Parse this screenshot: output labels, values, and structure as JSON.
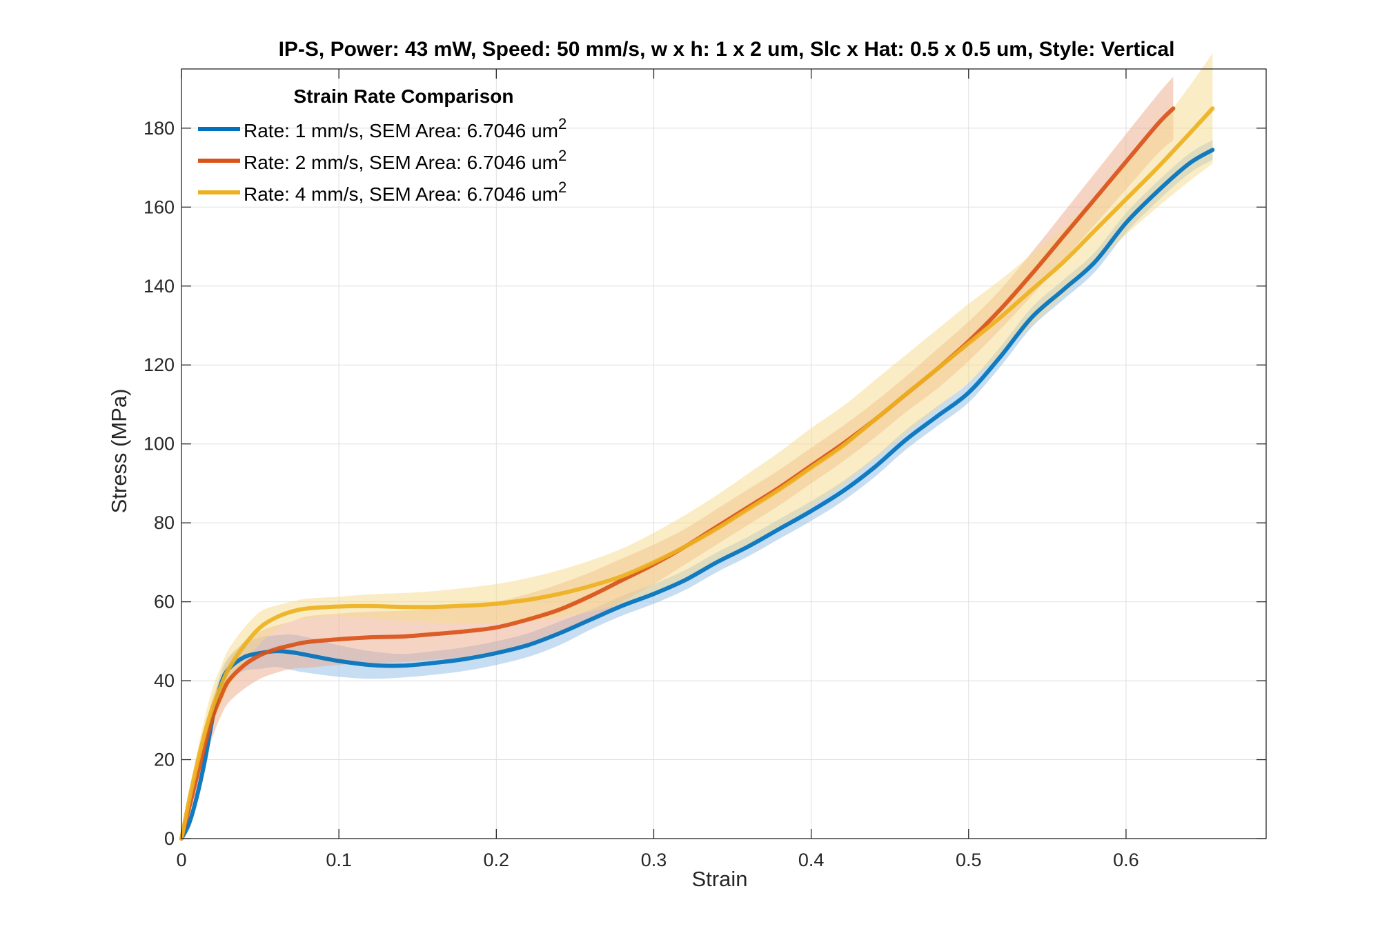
{
  "chart_data": {
    "type": "line",
    "title": "IP-S, Power: 43 mW, Speed: 50 mm/s, w x h: 1 x 2 um, Slc x Hat: 0.5 x 0.5 um, Style: Vertical",
    "xlabel": "Strain",
    "ylabel": "Stress (MPa)",
    "xlim": [
      0,
      0.689
    ],
    "ylim": [
      0,
      195
    ],
    "xticks": [
      0,
      0.1,
      0.2,
      0.3,
      0.4,
      0.5,
      0.6
    ],
    "xtick_labels": [
      "0",
      "0.1",
      "0.2",
      "0.3",
      "0.4",
      "0.5",
      "0.6"
    ],
    "yticks": [
      0,
      20,
      40,
      60,
      80,
      100,
      120,
      140,
      160,
      180
    ],
    "ytick_labels": [
      "0",
      "20",
      "40",
      "60",
      "80",
      "100",
      "120",
      "140",
      "160",
      "180"
    ],
    "grid": true,
    "legend": {
      "title": "Strain Rate Comparison",
      "placement": "top-left",
      "sup": "2"
    },
    "series": [
      {
        "name": "Rate: 1 mm/s, SEM Area: 6.7046 um",
        "color": "#0072BD",
        "band_color": "#8FBCE6",
        "x": [
          0,
          0.005,
          0.01,
          0.015,
          0.02,
          0.025,
          0.03,
          0.04,
          0.05,
          0.06,
          0.07,
          0.08,
          0.1,
          0.12,
          0.14,
          0.16,
          0.18,
          0.2,
          0.22,
          0.24,
          0.26,
          0.28,
          0.3,
          0.32,
          0.34,
          0.36,
          0.38,
          0.4,
          0.42,
          0.44,
          0.46,
          0.48,
          0.5,
          0.52,
          0.54,
          0.56,
          0.58,
          0.6,
          0.62,
          0.64,
          0.655
        ],
        "y": [
          0,
          4,
          11,
          20,
          31,
          39,
          43,
          46,
          47,
          47.5,
          47.2,
          46.5,
          45,
          44,
          43.8,
          44.5,
          45.5,
          47,
          49,
          52,
          55.5,
          59,
          62,
          65.5,
          70,
          74,
          78.5,
          83,
          88,
          94,
          101,
          107,
          113,
          122,
          132,
          139,
          146,
          156,
          164,
          171,
          174.5
        ],
        "band": [
          0,
          1.5,
          2,
          2.5,
          3,
          3,
          3,
          3.5,
          4,
          4,
          4.5,
          4.5,
          4,
          3.5,
          3,
          3,
          3,
          3,
          3,
          3,
          2.5,
          2.5,
          2.5,
          2.5,
          2.5,
          2.5,
          2.5,
          2.5,
          2.5,
          2.5,
          2.5,
          2.5,
          2.5,
          2.5,
          2.5,
          2.5,
          2.5,
          2.5,
          2.5,
          2.5,
          2.5
        ]
      },
      {
        "name": "Rate: 2 mm/s, SEM Area: 6.7046 um",
        "color": "#D95319",
        "band_color": "#EEA98A",
        "x": [
          0,
          0.005,
          0.01,
          0.015,
          0.02,
          0.025,
          0.03,
          0.04,
          0.05,
          0.06,
          0.07,
          0.08,
          0.1,
          0.12,
          0.14,
          0.16,
          0.18,
          0.2,
          0.22,
          0.24,
          0.26,
          0.28,
          0.3,
          0.32,
          0.34,
          0.36,
          0.38,
          0.4,
          0.42,
          0.44,
          0.46,
          0.48,
          0.5,
          0.52,
          0.54,
          0.56,
          0.58,
          0.6,
          0.62,
          0.63
        ],
        "y": [
          0,
          8,
          16,
          24,
          31,
          36,
          40,
          44,
          46.5,
          48,
          49,
          49.8,
          50.5,
          51,
          51.2,
          51.8,
          52.5,
          53.5,
          55.5,
          58,
          61.5,
          65.5,
          69.5,
          74,
          79,
          84,
          89,
          94.5,
          100,
          106,
          112.5,
          119,
          126,
          134,
          143,
          152.5,
          162,
          171.5,
          181,
          185
        ],
        "band": [
          0,
          2,
          3,
          4,
          5,
          5,
          5.5,
          6,
          6,
          6,
          6,
          6.5,
          6.5,
          6.5,
          6.5,
          6.5,
          6.5,
          6.5,
          6.5,
          6.5,
          6,
          5.5,
          5,
          4.5,
          4.5,
          4.5,
          4.5,
          4.5,
          4.5,
          4.5,
          4.5,
          5,
          5,
          5,
          5.5,
          6,
          6.5,
          7,
          7.5,
          8
        ]
      },
      {
        "name": "Rate: 4 mm/s, SEM Area: 6.7046 um",
        "color": "#EDB120",
        "band_color": "#F6D98A",
        "x": [
          0,
          0.005,
          0.01,
          0.015,
          0.02,
          0.025,
          0.03,
          0.04,
          0.05,
          0.06,
          0.07,
          0.08,
          0.1,
          0.12,
          0.14,
          0.16,
          0.18,
          0.2,
          0.22,
          0.24,
          0.26,
          0.28,
          0.3,
          0.32,
          0.34,
          0.36,
          0.38,
          0.4,
          0.42,
          0.44,
          0.46,
          0.48,
          0.5,
          0.52,
          0.54,
          0.56,
          0.58,
          0.6,
          0.62,
          0.64,
          0.655
        ],
        "y": [
          0,
          10,
          19,
          27,
          33.5,
          38.5,
          43,
          49,
          53.5,
          56,
          57.5,
          58.3,
          58.8,
          58.9,
          58.7,
          58.7,
          59,
          59.5,
          60.5,
          62,
          64,
          66.5,
          70,
          74,
          78.5,
          83.5,
          88.5,
          94,
          99.5,
          106,
          112.5,
          119,
          125.5,
          132,
          139,
          146,
          154,
          162,
          170,
          178.5,
          185
        ],
        "band": [
          0,
          2,
          3,
          4,
          5,
          5,
          5,
          4.5,
          4,
          3,
          2.5,
          2.5,
          2.5,
          3,
          3.5,
          4,
          4.5,
          5,
          5.5,
          6,
          6.5,
          7,
          7.5,
          8,
          8.5,
          9,
          9.5,
          10,
          10,
          10,
          10,
          10,
          10,
          9.5,
          9,
          8.5,
          8.5,
          9,
          10,
          12,
          14
        ]
      }
    ]
  }
}
